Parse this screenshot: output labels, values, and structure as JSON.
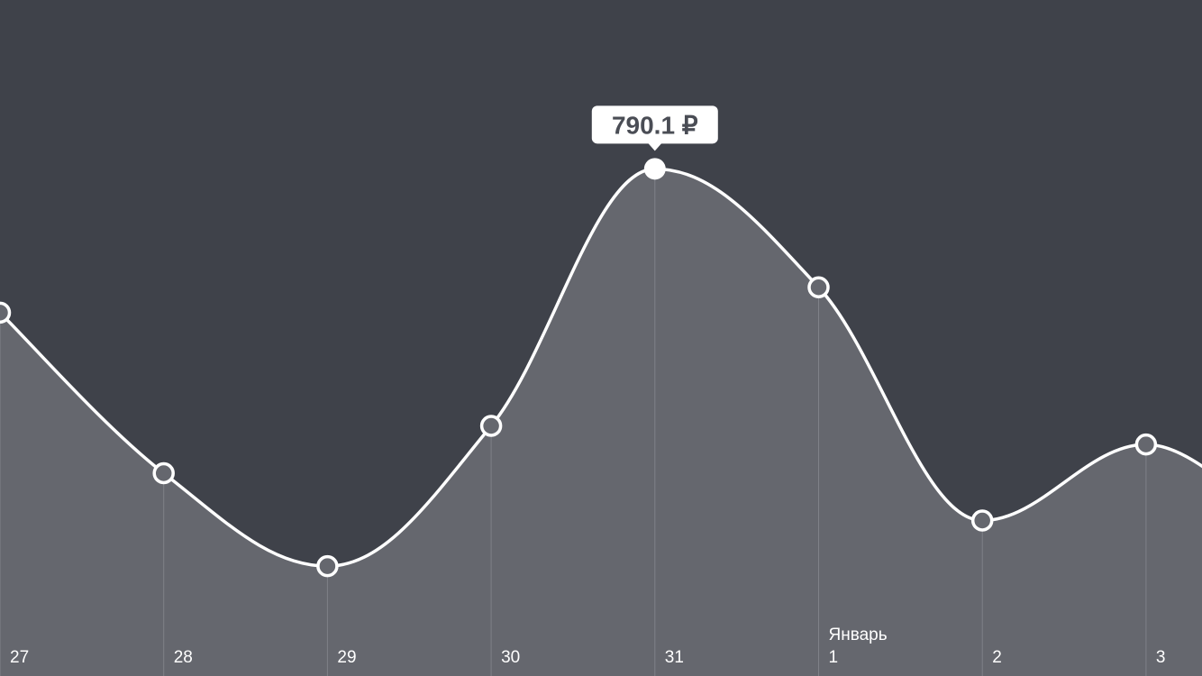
{
  "colors": {
    "background": "#3f424a",
    "area_fill": "#65676e",
    "line": "#ffffff",
    "gridline": "#8a8c93",
    "tooltip_bg": "#ffffff",
    "tooltip_text": "#4a4d55"
  },
  "chart_data": {
    "type": "area",
    "title": "",
    "xlabel": "",
    "ylabel": "",
    "unit": "₽",
    "categories": [
      "27",
      "28",
      "29",
      "30",
      "31",
      "1",
      "2",
      "3"
    ],
    "month_labels": [
      {
        "at_category": "1",
        "label": "Январь"
      }
    ],
    "values": [
      705,
      610,
      555,
      638,
      790.1,
      720,
      582,
      627
    ],
    "ylim": [
      490,
      890
    ],
    "grid": "vertical",
    "legend": "none",
    "selected_index": 4,
    "tooltip": {
      "label": "790.1 ₽"
    }
  }
}
